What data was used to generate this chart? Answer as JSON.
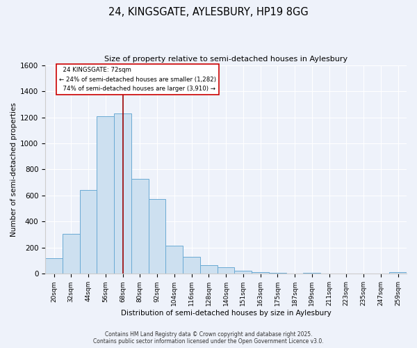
{
  "title": "24, KINGSGATE, AYLESBURY, HP19 8GG",
  "subtitle": "Size of property relative to semi-detached houses in Aylesbury",
  "xlabel": "Distribution of semi-detached houses by size in Aylesbury",
  "ylabel": "Number of semi-detached properties",
  "categories": [
    "20sqm",
    "32sqm",
    "44sqm",
    "56sqm",
    "68sqm",
    "80sqm",
    "92sqm",
    "104sqm",
    "116sqm",
    "128sqm",
    "140sqm",
    "151sqm",
    "163sqm",
    "175sqm",
    "187sqm",
    "199sqm",
    "211sqm",
    "223sqm",
    "235sqm",
    "247sqm",
    "259sqm"
  ],
  "values": [
    120,
    305,
    640,
    1210,
    1230,
    730,
    575,
    215,
    130,
    65,
    50,
    25,
    15,
    5,
    0,
    5,
    0,
    0,
    0,
    0,
    15
  ],
  "bar_color": "#cde0f0",
  "bar_edge_color": "#6aaad4",
  "vline_x_index": 4.0,
  "marker_label": "24 KINGSGATE: 72sqm",
  "smaller_pct": "24%",
  "smaller_count": "1,282",
  "larger_pct": "74%",
  "larger_count": "3,910",
  "vline_color": "#990000",
  "annotation_box_facecolor": "#ffffff",
  "annotation_box_edgecolor": "#cc0000",
  "ylim": [
    0,
    1600
  ],
  "background_color": "#eef2fa",
  "footer1": "Contains HM Land Registry data © Crown copyright and database right 2025.",
  "footer2": "Contains public sector information licensed under the Open Government Licence v3.0."
}
